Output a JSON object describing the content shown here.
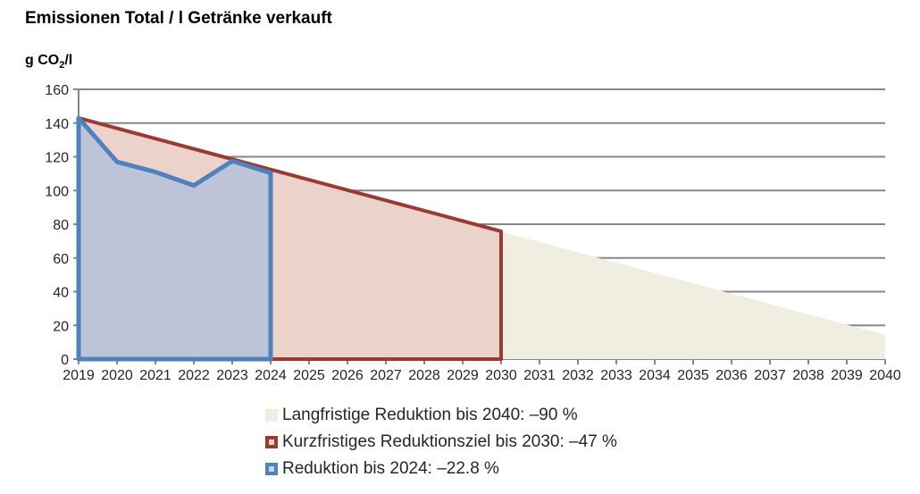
{
  "title": "Emissionen Total / l Getränke verkauft",
  "unit_label": {
    "prefix": "g CO",
    "sub": "2",
    "suffix": "/l"
  },
  "legend": {
    "position": "bottom",
    "items": [
      {
        "label": "Langfristige Reduktion bis 2040: –90 %",
        "marker_border": "#EFEEE1",
        "marker_fill": "#EFEEE1"
      },
      {
        "label": "Kurzfristiges Reduktionsziel bis 2030: –47 %",
        "marker_border": "#9A3A31",
        "marker_fill": "#EBD3CC"
      },
      {
        "label": "Reduktion bis 2024: –22.8 %",
        "marker_border": "#4F81BD",
        "marker_fill": "#C7D1E4"
      }
    ]
  },
  "chart_data": {
    "type": "area",
    "title": "Emissionen Total / l Getränke verkauft",
    "xlabel": "",
    "ylabel": "g CO2/l",
    "ylim": [
      0,
      160
    ],
    "x_range": [
      2019,
      2040
    ],
    "grid": true,
    "grid_color": "#878787",
    "y_ticks": [
      0,
      20,
      40,
      60,
      80,
      100,
      120,
      140,
      160
    ],
    "x_ticks": [
      "2019",
      "2020",
      "2021",
      "2022",
      "2023",
      "2024",
      "2025",
      "2026",
      "2027",
      "2028",
      "2029",
      "2030",
      "2031",
      "2032",
      "2033",
      "2034",
      "2035",
      "2036",
      "2037",
      "2038",
      "2039",
      "2040"
    ],
    "series": [
      {
        "id": "langfristige-reduktion-2040",
        "name": "Langfristige Reduktion bis 2040: –90 %",
        "x": [
          2019,
          2040
        ],
        "y": [
          143,
          14.3
        ],
        "fill": "#EFEEE1",
        "stroke": "none",
        "stroke_width": 0
      },
      {
        "id": "kurzfristiges-reduktionsziel-2030",
        "name": "Kurzfristiges Reduktionsziel bis 2030: –47 %",
        "x": [
          2019,
          2030
        ],
        "y": [
          143,
          75.8
        ],
        "fill": "#EBD3CC",
        "stroke": "#9A3A31",
        "stroke_width": 4
      },
      {
        "id": "reduktion-2024",
        "name": "Reduktion bis 2024: –22.8 %",
        "x": [
          2019,
          2020,
          2021,
          2022,
          2023,
          2024
        ],
        "y": [
          143,
          117,
          111,
          103,
          117.5,
          110.4
        ],
        "fill": "#BDC4D8",
        "stroke": "#4F81BD",
        "stroke_width": 5
      }
    ]
  }
}
